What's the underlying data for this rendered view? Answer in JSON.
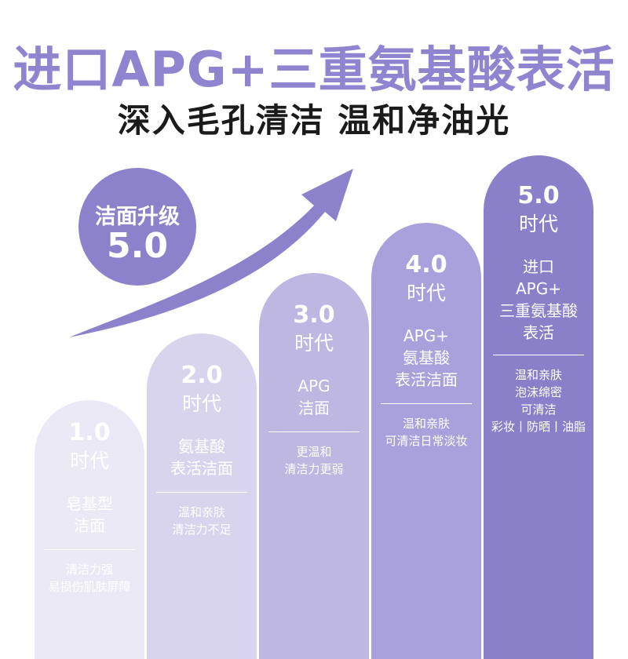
{
  "header": {
    "title": "进口APG+三重氨基酸表活",
    "subtitle": "深入毛孔清洁 温和净油光"
  },
  "badge": {
    "line1": "洁面升级",
    "line2": "5.0"
  },
  "columns": [
    {
      "era": "1.0",
      "era_suffix": "时代",
      "features": [
        "皂基型",
        "洁面"
      ],
      "notes": [
        "清洁力强",
        "易损伤肌肤屏障"
      ]
    },
    {
      "era": "2.0",
      "era_suffix": "时代",
      "features": [
        "氨基酸",
        "表活洁面"
      ],
      "notes": [
        "温和亲肤",
        "清洁力不足"
      ]
    },
    {
      "era": "3.0",
      "era_suffix": "时代",
      "features": [
        "APG",
        "洁面"
      ],
      "notes": [
        "更温和",
        "清洁力更弱"
      ]
    },
    {
      "era": "4.0",
      "era_suffix": "时代",
      "features": [
        "APG+",
        "氨基酸",
        "表活洁面"
      ],
      "notes": [
        "温和亲肤",
        "可清洁日常淡妆"
      ]
    },
    {
      "era": "5.0",
      "era_suffix": "时代",
      "features": [
        "进口",
        "APG+",
        "三重氨基酸",
        "表活"
      ],
      "notes": [
        "温和亲肤",
        "泡沫绵密",
        "可清洁",
        "彩妆丨防晒丨油脂"
      ]
    }
  ],
  "colors": {
    "title": "#8f84cf",
    "badge": "#8c82cb",
    "arrow": "#8c82cb",
    "col1": "#ebe9f5",
    "col2": "#d8d4ee",
    "col3": "#bdb7e2",
    "col4": "#a8a1dc",
    "col5": "#8a80ca"
  }
}
